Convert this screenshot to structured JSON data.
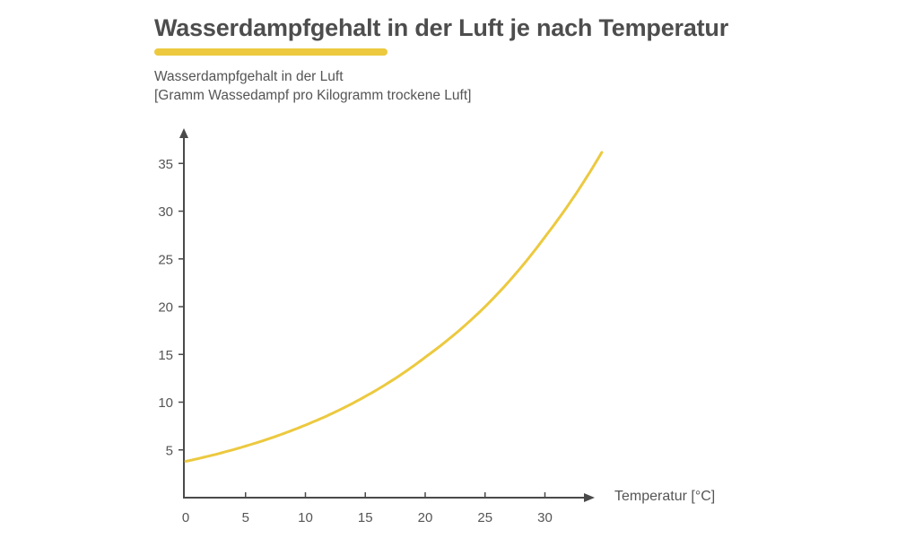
{
  "title": "Wasserdampfgehalt in der Luft je nach Temperatur",
  "accent_color": "#ecc93f",
  "y_axis": {
    "label_line1": "Wasserdampfgehalt in der Luft",
    "label_line2": "[Gramm Wassedampf pro Kilogramm trockene Luft]",
    "ticks": [
      "5",
      "10",
      "15",
      "20",
      "25",
      "30",
      "35"
    ]
  },
  "x_axis": {
    "label": "Temperatur [°C]",
    "ticks": [
      "0",
      "5",
      "10",
      "15",
      "20",
      "25",
      "30"
    ]
  },
  "chart_data": {
    "type": "line",
    "title": "Wasserdampfgehalt in der Luft je nach Temperatur",
    "xlabel": "Temperatur [°C]",
    "ylabel": "Wasserdampfgehalt in der Luft [Gramm Wassedampf pro Kilogramm trockene Luft]",
    "x": [
      0,
      5,
      10,
      15,
      20,
      25,
      30,
      35
    ],
    "series": [
      {
        "name": "Wasserdampfgehalt",
        "color": "#ecc93f",
        "values": [
          3.8,
          5.4,
          7.6,
          10.6,
          14.7,
          20.0,
          27.3,
          36.7
        ]
      }
    ],
    "xlim": [
      0,
      34
    ],
    "ylim": [
      0,
      37
    ],
    "x_ticks": [
      0,
      5,
      10,
      15,
      20,
      25,
      30
    ],
    "y_ticks": [
      5,
      10,
      15,
      20,
      25,
      30,
      35
    ],
    "grid": false,
    "legend": "none"
  }
}
